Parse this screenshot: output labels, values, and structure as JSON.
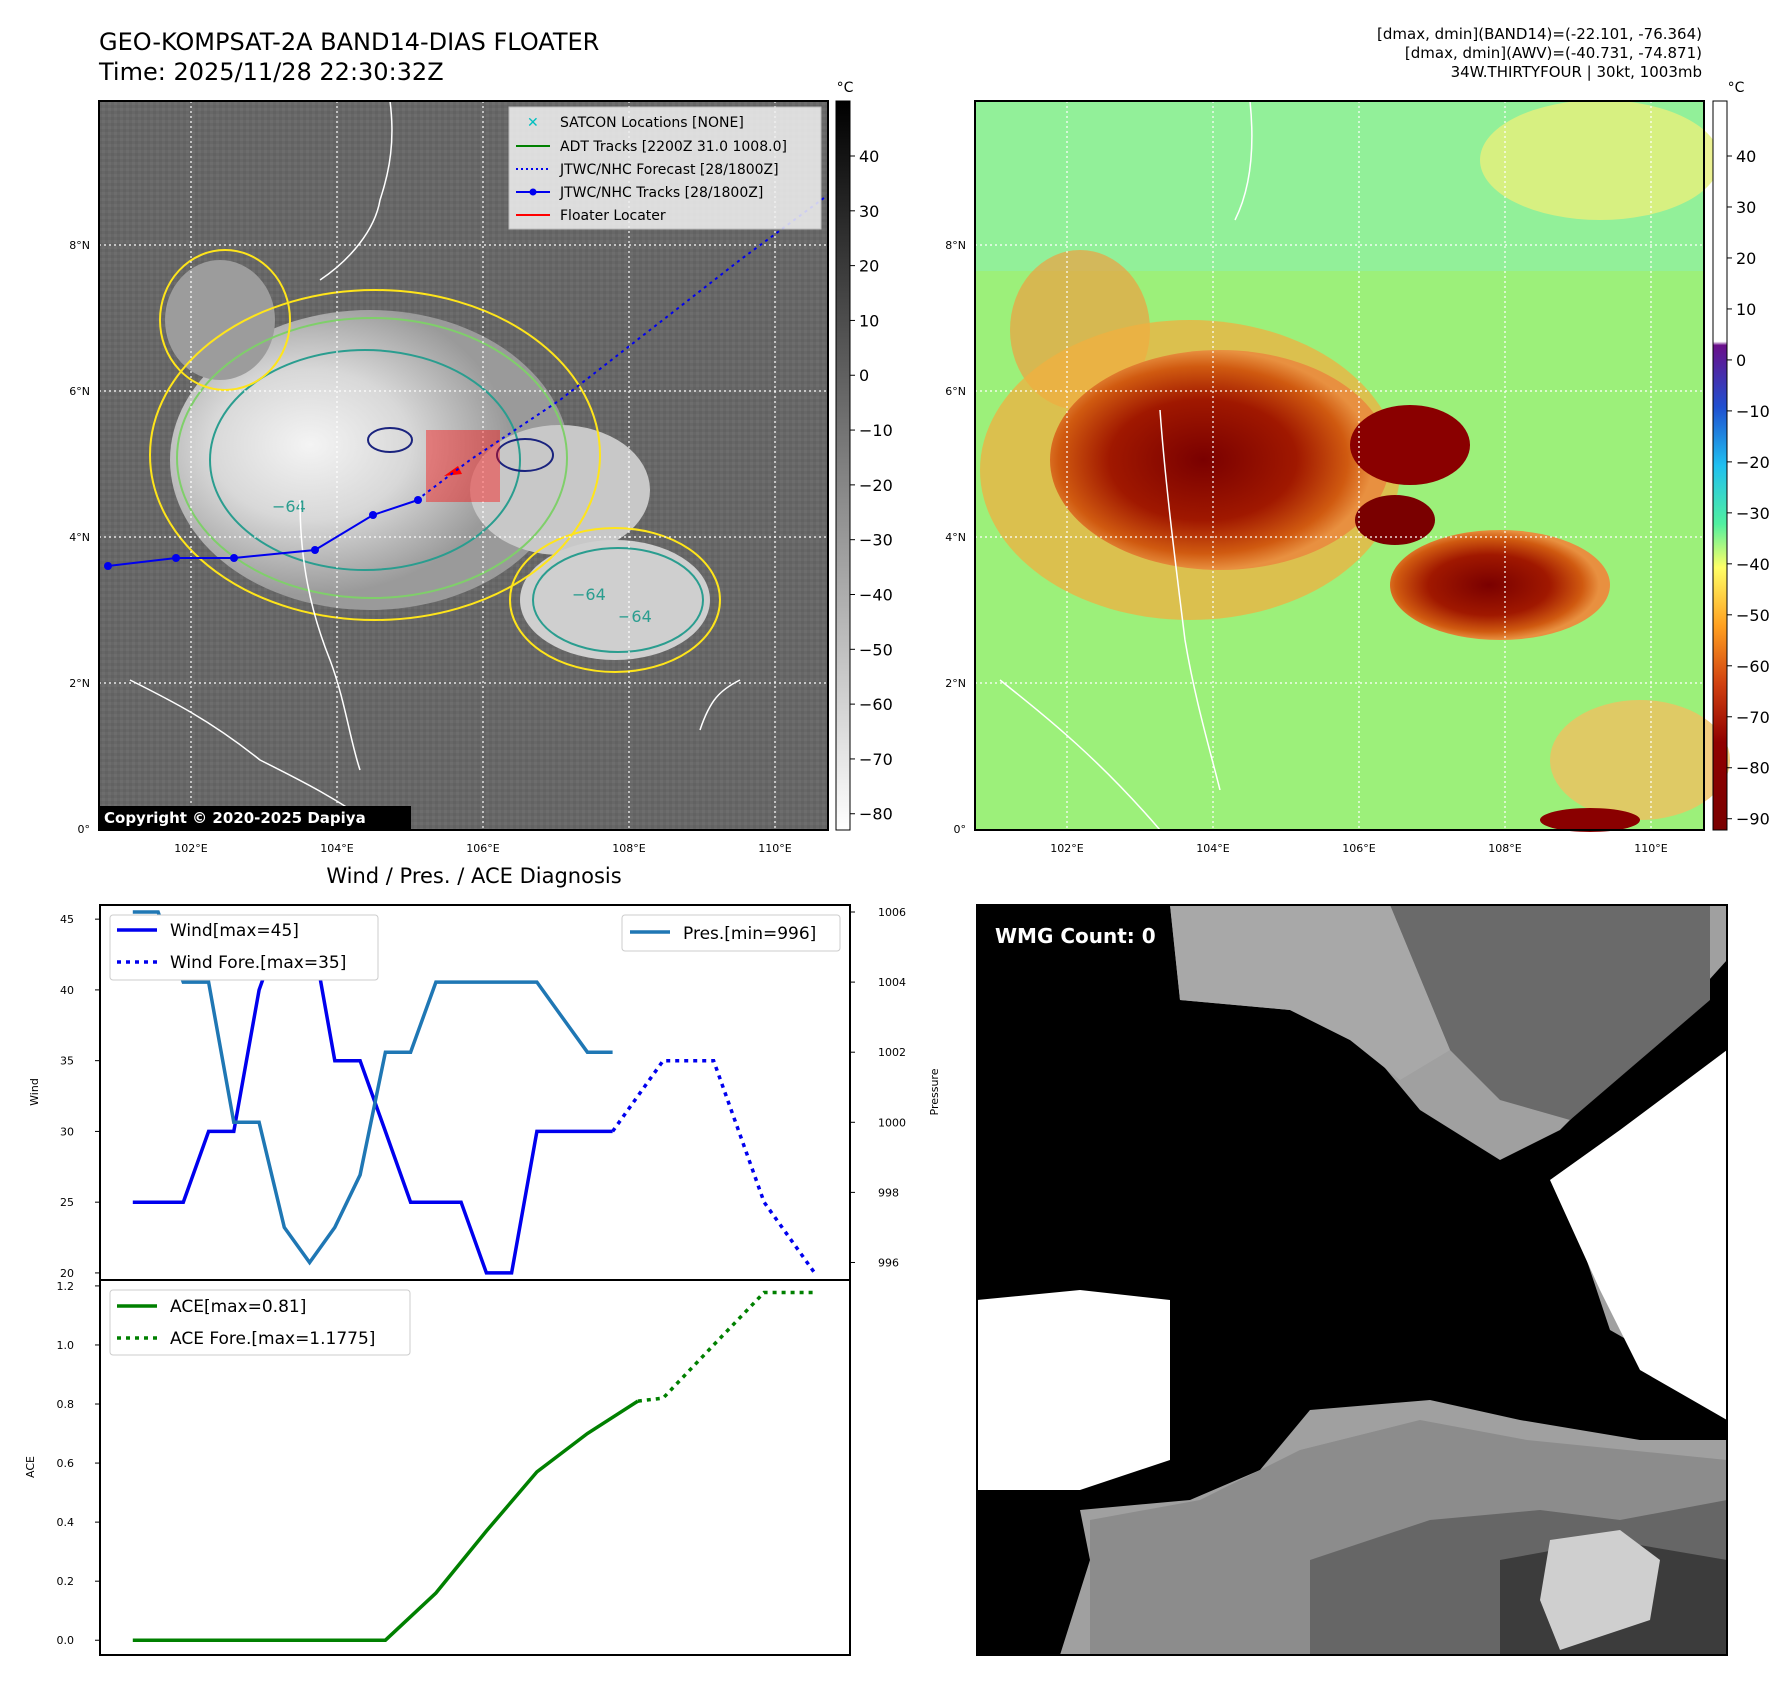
{
  "header": {
    "title_line1": "GEO-KOMPSAT-2A BAND14-DIAS FLOATER",
    "title_line2": "Time: 2025/11/28 22:30:32Z",
    "info_line1": "[dmax, dmin](BAND14)=(-22.101, -76.364)",
    "info_line2": "[dmax, dmin](AWV)=(-40.731, -74.871)",
    "info_line3": "34W.THIRTYFOUR | 30kt, 1003mb"
  },
  "map": {
    "lat_labels": [
      "8°N",
      "6°N",
      "4°N",
      "2°N",
      "0°"
    ],
    "lon_labels": [
      "102°E",
      "104°E",
      "106°E",
      "108°E",
      "110°E"
    ],
    "copyright": "Copyright © 2020-2025 Dapiya",
    "contour_labels": [
      "−64",
      "−64",
      "−64"
    ],
    "legend": {
      "satcon": "SATCON Locations [NONE]",
      "adt": "ADT Tracks [2200Z 31.0 1008.0]",
      "forecast": "JTWC/NHC Forecast [28/1800Z]",
      "tracks": "JTWC/NHC Tracks [28/1800Z]",
      "floater": "Floater Locater"
    },
    "colorbar_left": {
      "unit": "°C",
      "ticks": [
        "40",
        "30",
        "20",
        "10",
        "0",
        "−10",
        "−20",
        "−30",
        "−40",
        "−50",
        "−60",
        "−70",
        "−80"
      ]
    },
    "colorbar_right": {
      "unit": "°C",
      "ticks": [
        "40",
        "30",
        "20",
        "10",
        "0",
        "−10",
        "−20",
        "−30",
        "−40",
        "−50",
        "−60",
        "−70",
        "−80",
        "−90"
      ]
    },
    "colors": {
      "track": "#0000ee",
      "adt": "#008000",
      "floater": "#ff0000",
      "satcon": "#00bfbf"
    }
  },
  "wmg": {
    "label": "WMG Count: 0"
  },
  "chart_data": [
    {
      "type": "line",
      "title": "Wind / Pres. / ACE Diagnosis",
      "ylabel": "Wind",
      "ylabel_right": "Pressure",
      "ylim": [
        19.5,
        46
      ],
      "ylim_right": [
        995.5,
        1006.2
      ],
      "yticks": [
        20,
        25,
        30,
        35,
        40,
        45
      ],
      "yticks_right": [
        996,
        998,
        1000,
        1002,
        1004,
        1006
      ],
      "legend_left": [
        "Wind[max=45]",
        "Wind Fore.[max=35]"
      ],
      "legend_right": [
        "Pres.[min=996]"
      ],
      "series": [
        {
          "name": "Wind[max=45]",
          "axis": "left",
          "style": "solid",
          "color": "#0000ee",
          "x": [
            0,
            1,
            2,
            3,
            4,
            5,
            6,
            7,
            8,
            9,
            10,
            11,
            12,
            13,
            14,
            15,
            16,
            17,
            18,
            19
          ],
          "values": [
            25,
            25,
            25,
            30,
            30,
            40,
            45,
            45,
            35,
            35,
            30,
            25,
            25,
            25,
            20,
            20,
            30,
            30,
            30,
            30
          ]
        },
        {
          "name": "Wind Fore.[max=35]",
          "axis": "left",
          "style": "dotted",
          "color": "#0000ee",
          "x": [
            19,
            21,
            23,
            25,
            27
          ],
          "values": [
            30,
            35,
            35,
            25,
            20
          ]
        },
        {
          "name": "Pres.[min=996]",
          "axis": "right",
          "style": "solid",
          "color": "#1f77b4",
          "x": [
            0,
            1,
            2,
            3,
            4,
            5,
            6,
            7,
            8,
            9,
            10,
            11,
            12,
            13,
            14,
            15,
            16,
            17,
            18,
            19
          ],
          "values": [
            1006,
            1006,
            1004,
            1004,
            1000,
            1000,
            997,
            996,
            997,
            998.5,
            1002,
            1002,
            1004,
            1004,
            1004,
            1004,
            1004,
            1003,
            1002,
            1002
          ]
        }
      ]
    },
    {
      "type": "line",
      "ylabel": "ACE",
      "ylim": [
        -0.05,
        1.22
      ],
      "yticks": [
        0.0,
        0.2,
        0.4,
        0.6,
        0.8,
        1.0,
        1.2
      ],
      "ytick_labels": [
        "0.0",
        "0.2",
        "0.4",
        "0.6",
        "0.8",
        "1.0",
        "1.2"
      ],
      "legend": [
        "ACE[max=0.81]",
        "ACE Fore.[max=1.1775]"
      ],
      "series": [
        {
          "name": "ACE[max=0.81]",
          "style": "solid",
          "color": "#008000",
          "x": [
            0,
            2,
            4,
            6,
            8,
            10,
            12,
            14,
            16,
            18,
            20
          ],
          "values": [
            0,
            0,
            0,
            0,
            0,
            0,
            0.16,
            0.37,
            0.57,
            0.7,
            0.81
          ]
        },
        {
          "name": "ACE Fore.[max=1.1775]",
          "style": "dotted",
          "color": "#008000",
          "x": [
            20,
            21,
            23,
            25,
            27
          ],
          "values": [
            0.81,
            0.82,
            1.0,
            1.1775,
            1.1775
          ]
        }
      ]
    }
  ]
}
